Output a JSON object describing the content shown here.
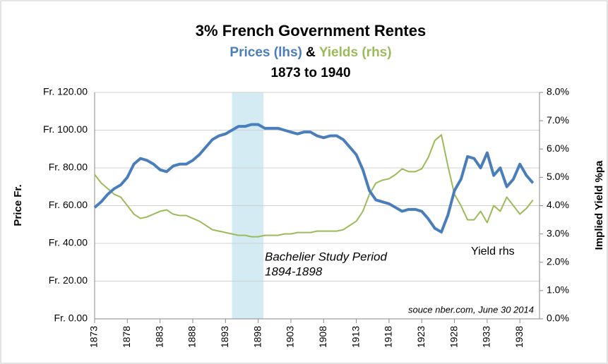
{
  "chart_data": {
    "type": "line",
    "title": "3% French Government Rentes",
    "subtitle_separator": "&",
    "date_range": "1873 to 1940",
    "y_label": "Price Fr.",
    "y2_label": "Implied Yield %pa",
    "annotations": [
      "Bachelier Study Period",
      "1894-1898",
      "Yield rhs",
      "souce nber.com, June 30 2014"
    ],
    "shaded_period": [
      1894,
      1898.8
    ],
    "shade_color": "#d5ebf3",
    "xlim": [
      1873,
      1941
    ],
    "xticks": [
      1873,
      1878,
      1883,
      1888,
      1893,
      1898,
      1903,
      1908,
      1913,
      1918,
      1923,
      1928,
      1933,
      1938
    ],
    "ylim": [
      0,
      120
    ],
    "yticks": [
      {
        "value": 0,
        "label": "Fr. 0.00"
      },
      {
        "value": 20,
        "label": "Fr. 20.00"
      },
      {
        "value": 40,
        "label": "Fr. 40.00"
      },
      {
        "value": 60,
        "label": "Fr. 60.00"
      },
      {
        "value": 80,
        "label": "Fr. 80.00"
      },
      {
        "value": 100,
        "label": "Fr. 100.00"
      },
      {
        "value": 120,
        "label": "Fr. 120.00"
      }
    ],
    "y2lim": [
      0,
      8
    ],
    "y2ticks": [
      {
        "value": 0,
        "label": "0.0%"
      },
      {
        "value": 1,
        "label": "1.0%"
      },
      {
        "value": 2,
        "label": "2.0%"
      },
      {
        "value": 3,
        "label": "3.0%"
      },
      {
        "value": 4,
        "label": "4.0%"
      },
      {
        "value": 5,
        "label": "5.0%"
      },
      {
        "value": 6,
        "label": "6.0%"
      },
      {
        "value": 7,
        "label": "7.0%"
      },
      {
        "value": 8,
        "label": "8.0%"
      }
    ],
    "grid": true,
    "x": [
      1873,
      1874,
      1875,
      1876,
      1877,
      1878,
      1879,
      1880,
      1881,
      1882,
      1883,
      1884,
      1885,
      1886,
      1887,
      1888,
      1889,
      1890,
      1891,
      1892,
      1893,
      1894,
      1895,
      1896,
      1897,
      1898,
      1899,
      1900,
      1901,
      1902,
      1903,
      1904,
      1905,
      1906,
      1907,
      1908,
      1909,
      1910,
      1911,
      1912,
      1913,
      1914,
      1915,
      1916,
      1917,
      1918,
      1919,
      1920,
      1921,
      1922,
      1923,
      1924,
      1925,
      1926,
      1927,
      1928,
      1929,
      1930,
      1931,
      1932,
      1933,
      1934,
      1935,
      1936,
      1937,
      1938,
      1939,
      1940
    ],
    "series": [
      {
        "name": "Prices (lhs)",
        "color": "#4a7ebb",
        "axis": "y",
        "values": [
          59,
          62,
          66,
          69,
          71,
          75,
          82,
          85,
          84,
          82,
          79,
          78,
          81,
          82,
          82,
          84,
          87,
          91,
          95,
          97,
          98,
          100,
          102,
          102,
          103,
          103,
          101,
          101,
          101,
          100,
          99,
          98,
          99,
          99,
          97,
          96,
          97,
          97,
          95,
          91,
          87,
          79,
          68,
          63,
          62,
          61,
          59,
          57,
          58,
          58,
          57,
          53,
          48,
          46,
          55,
          68,
          74,
          86,
          85,
          80,
          88,
          76,
          80,
          70,
          74,
          82,
          76,
          72
        ]
      },
      {
        "name": "Yields (rhs)",
        "color": "#9bbb59",
        "axis": "y2",
        "values": [
          5.1,
          4.8,
          4.6,
          4.4,
          4.3,
          4.0,
          3.7,
          3.55,
          3.6,
          3.7,
          3.8,
          3.85,
          3.7,
          3.65,
          3.65,
          3.55,
          3.45,
          3.3,
          3.15,
          3.1,
          3.05,
          3.0,
          2.95,
          2.95,
          2.9,
          2.9,
          2.95,
          2.95,
          2.95,
          3.0,
          3.0,
          3.05,
          3.05,
          3.05,
          3.1,
          3.1,
          3.1,
          3.1,
          3.15,
          3.3,
          3.45,
          3.8,
          4.4,
          4.8,
          4.9,
          4.95,
          5.1,
          5.3,
          5.2,
          5.2,
          5.3,
          5.7,
          6.3,
          6.5,
          5.4,
          4.4,
          4.0,
          3.5,
          3.5,
          3.8,
          3.4,
          4.0,
          3.8,
          4.3,
          4.0,
          3.7,
          3.9,
          4.2
        ]
      }
    ]
  }
}
